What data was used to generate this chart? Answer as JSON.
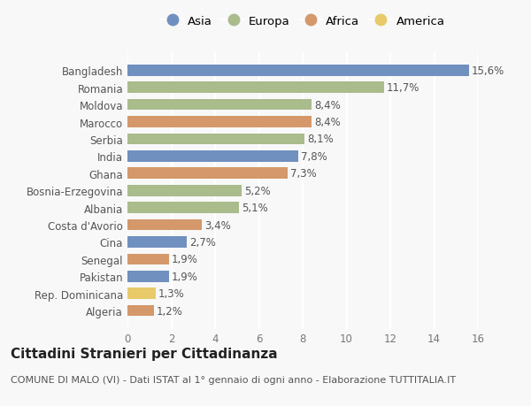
{
  "categories": [
    "Algeria",
    "Rep. Dominicana",
    "Pakistan",
    "Senegal",
    "Cina",
    "Costa d'Avorio",
    "Albania",
    "Bosnia-Erzegovina",
    "Ghana",
    "India",
    "Serbia",
    "Marocco",
    "Moldova",
    "Romania",
    "Bangladesh"
  ],
  "values": [
    1.2,
    1.3,
    1.9,
    1.9,
    2.7,
    3.4,
    5.1,
    5.2,
    7.3,
    7.8,
    8.1,
    8.4,
    8.4,
    11.7,
    15.6
  ],
  "labels": [
    "1,2%",
    "1,3%",
    "1,9%",
    "1,9%",
    "2,7%",
    "3,4%",
    "5,1%",
    "5,2%",
    "7,3%",
    "7,8%",
    "8,1%",
    "8,4%",
    "8,4%",
    "11,7%",
    "15,6%"
  ],
  "continents": [
    "Africa",
    "America",
    "Asia",
    "Africa",
    "Asia",
    "Africa",
    "Europa",
    "Europa",
    "Africa",
    "Asia",
    "Europa",
    "Africa",
    "Europa",
    "Europa",
    "Asia"
  ],
  "continent_colors": {
    "Asia": "#7090bf",
    "Europa": "#aabb8c",
    "Africa": "#d4986a",
    "America": "#e8ca6a"
  },
  "legend_order": [
    "Asia",
    "Europa",
    "Africa",
    "America"
  ],
  "xlim": [
    0,
    16
  ],
  "xticks": [
    0,
    2,
    4,
    6,
    8,
    10,
    12,
    14,
    16
  ],
  "title": "Cittadini Stranieri per Cittadinanza",
  "subtitle": "COMUNE DI MALO (VI) - Dati ISTAT al 1° gennaio di ogni anno - Elaborazione TUTTITALIA.IT",
  "background_color": "#f8f8f8",
  "bar_height": 0.65,
  "label_fontsize": 8.5,
  "tick_fontsize": 8.5,
  "title_fontsize": 11,
  "subtitle_fontsize": 8
}
